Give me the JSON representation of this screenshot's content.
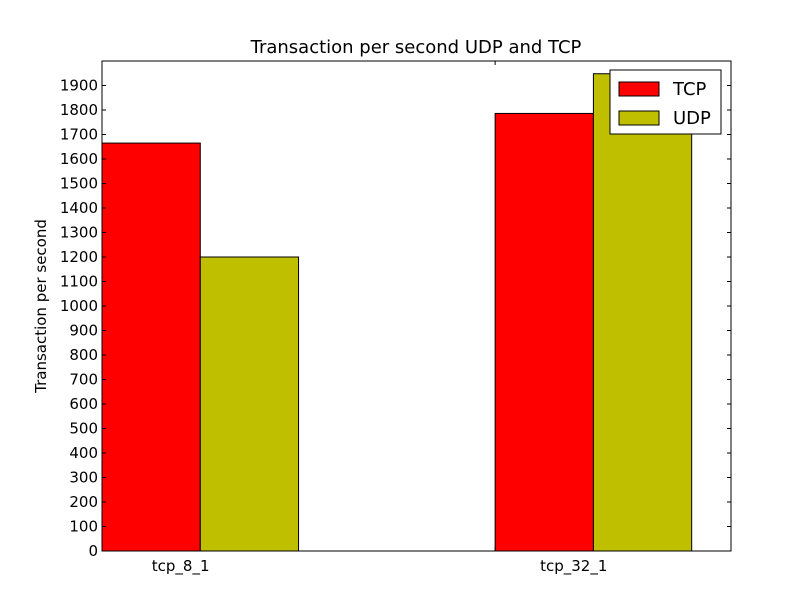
{
  "chart_data": {
    "type": "bar",
    "title": "Transaction per second UDP and TCP",
    "xlabel": "",
    "ylabel": "Transaction per second",
    "categories": [
      "tcp_8_1",
      "tcp_32_1"
    ],
    "series": [
      {
        "name": "TCP",
        "color": "#ff0000",
        "values": [
          1665,
          1786
        ]
      },
      {
        "name": "UDP",
        "color": "#bfbf00",
        "values": [
          1200,
          1948
        ]
      }
    ],
    "ylim": [
      0,
      2000
    ],
    "yticks": [
      0,
      100,
      200,
      300,
      400,
      500,
      600,
      700,
      800,
      900,
      1000,
      1100,
      1200,
      1300,
      1400,
      1500,
      1600,
      1700,
      1800,
      1900
    ],
    "grid": false,
    "legend_position": "top-right"
  }
}
